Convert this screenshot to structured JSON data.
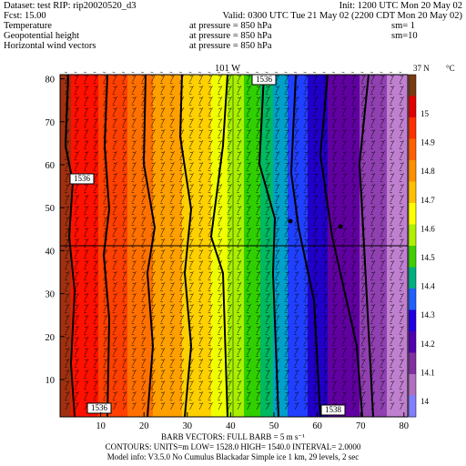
{
  "header": {
    "dataset": "Dataset: test  RIP: rip20020520_d3",
    "init": "Init: 1200 UTC Mon 20 May 02",
    "fcst": "Fcst:    15.00",
    "valid": "Valid: 0300 UTC Tue 21 May 02 (2200 CDT Mon 20 May 02)",
    "fields": [
      {
        "name": "Temperature",
        "pressure": "at pressure =  850 hPa",
        "sm": "sm= 1"
      },
      {
        "name": "Geopotential height",
        "pressure": "at pressure =  850 hPa",
        "sm": "sm=10"
      },
      {
        "name": "Horizontal wind vectors",
        "pressure": "at pressure =  850 hPa"
      }
    ]
  },
  "plot": {
    "cross_label": "101 W",
    "corner_label": "37 N",
    "unit": "°C",
    "x_ticks": [
      "10",
      "20",
      "30",
      "40",
      "50",
      "60",
      "70",
      "80"
    ],
    "y_ticks": [
      "10",
      "20",
      "30",
      "40",
      "50",
      "60",
      "70",
      "80"
    ],
    "colorbar": [
      "15",
      "14.9",
      "14.8",
      "14.7",
      "14.6",
      "14.5",
      "14.4",
      "14.3",
      "14.2",
      "14.1",
      "14"
    ],
    "contour_labels": [
      "1536",
      "1536",
      "1536",
      "1538"
    ]
  },
  "footer": [
    "BARB VECTORS:  FULL BARB = 5 m s⁻¹",
    "CONTOURS:  UNITS=m   LOW=  1528.0    HIGH=  1540.0    INTERVAL=   2.0000",
    "Model info: V3.5.0  No Cumulus  Blackadar  Simple ice    1 km,  29 levels,    2 sec"
  ]
}
